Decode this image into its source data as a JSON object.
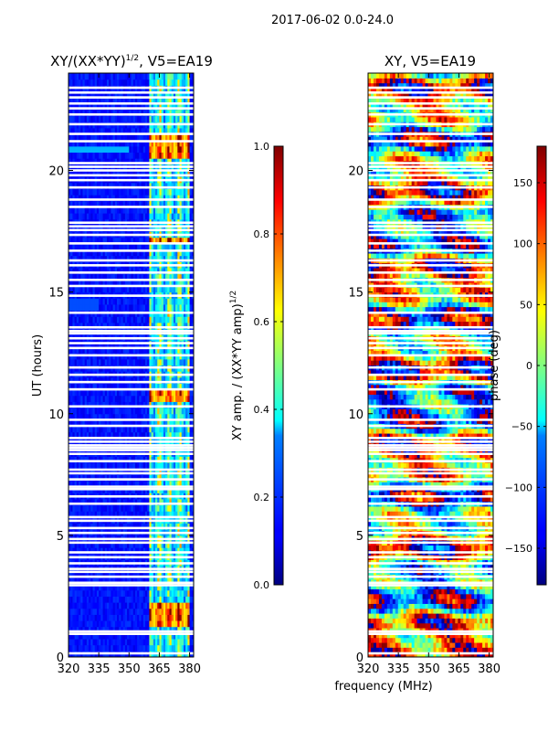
{
  "chart_data": [
    {
      "type": "heatmap",
      "figure_title": "2017-06-02 0.0-24.0",
      "title": "XY/(XX*YY)",
      "title_sup": "1/2",
      "title_suffix": ", V5=EA19",
      "xlabel": "frequency (MHz)",
      "ylabel": "UT (hours)",
      "xlim": [
        320,
        382
      ],
      "ylim": [
        0,
        24
      ],
      "xticks": [
        "320",
        "335",
        "350",
        "365",
        "380"
      ],
      "xtick_values": [
        320,
        335,
        350,
        365,
        380
      ],
      "yticks": [
        "0",
        "5",
        "10",
        "15",
        "20"
      ],
      "ytick_values": [
        0,
        5,
        10,
        15,
        20
      ],
      "colorbar": {
        "label": "XY amp. / (XX*YY amp)",
        "label_sup": "1/2",
        "range": [
          0.0,
          1.0
        ],
        "ticks": [
          "0.0",
          "0.2",
          "0.4",
          "0.6",
          "0.8",
          "1.0"
        ],
        "tick_values": [
          0.0,
          0.2,
          0.4,
          0.6,
          0.8,
          1.0
        ],
        "colormap": "jet"
      },
      "high_amplitude_band_mhz": [
        360,
        380
      ]
    },
    {
      "type": "heatmap",
      "title": "XY, V5=EA19",
      "xlim": [
        320,
        382
      ],
      "ylim": [
        0,
        24
      ],
      "xticks": [
        "320",
        "335",
        "350",
        "365",
        "380"
      ],
      "xtick_values": [
        320,
        335,
        350,
        365,
        380
      ],
      "yticks": [
        "0",
        "5",
        "10",
        "15",
        "20"
      ],
      "ytick_values": [
        0,
        5,
        10,
        15,
        20
      ],
      "colorbar": {
        "label": "phase (deg)",
        "range": [
          -180,
          180
        ],
        "ticks": [
          "−150",
          "−100",
          "−50",
          "0",
          "50",
          "100",
          "150"
        ],
        "tick_values": [
          -150,
          -100,
          -50,
          0,
          50,
          100,
          150
        ],
        "colormap": "jet"
      }
    }
  ],
  "flagged_ut_hours": [
    0.15,
    0.95,
    1.05,
    2.95,
    3.05,
    3.3,
    3.5,
    3.62,
    3.85,
    4.1,
    4.3,
    4.7,
    4.85,
    5.1,
    5.3,
    5.6,
    5.75,
    6.3,
    6.6,
    6.9,
    7.0,
    7.3,
    7.55,
    7.7,
    8.05,
    8.35,
    8.5,
    8.6,
    8.7,
    8.85,
    9.0,
    9.5,
    9.75,
    10.3,
    11.0,
    11.3,
    11.6,
    11.9,
    12.4,
    12.7,
    12.9,
    13.1,
    13.3,
    13.4,
    13.55,
    14.15,
    14.85,
    15.25,
    15.5,
    15.8,
    16.1,
    16.3,
    16.7,
    17.0,
    17.35,
    17.55,
    17.7,
    17.85,
    18.5,
    18.8,
    19.3,
    19.6,
    19.8,
    20.0,
    20.15,
    20.3,
    21.2,
    21.5,
    21.9,
    22.3,
    22.55,
    22.75,
    23.0,
    23.2,
    23.4
  ]
}
